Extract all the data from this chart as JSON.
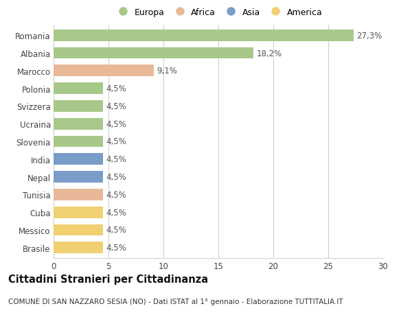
{
  "countries": [
    "Romania",
    "Albania",
    "Marocco",
    "Polonia",
    "Svizzera",
    "Ucraina",
    "Slovenia",
    "India",
    "Nepal",
    "Tunisia",
    "Cuba",
    "Messico",
    "Brasile"
  ],
  "values": [
    27.3,
    18.2,
    9.1,
    4.5,
    4.5,
    4.5,
    4.5,
    4.5,
    4.5,
    4.5,
    4.5,
    4.5,
    4.5
  ],
  "labels": [
    "27,3%",
    "18,2%",
    "9,1%",
    "4,5%",
    "4,5%",
    "4,5%",
    "4,5%",
    "4,5%",
    "4,5%",
    "4,5%",
    "4,5%",
    "4,5%",
    "4,5%"
  ],
  "continents": [
    "Europa",
    "Europa",
    "Africa",
    "Europa",
    "Europa",
    "Europa",
    "Europa",
    "Asia",
    "Asia",
    "Africa",
    "America",
    "America",
    "America"
  ],
  "colors": {
    "Europa": "#a8c88a",
    "Africa": "#e8b898",
    "Asia": "#7a9cc8",
    "America": "#f0d070"
  },
  "xlim": [
    0,
    30
  ],
  "xticks": [
    0,
    5,
    10,
    15,
    20,
    25,
    30
  ],
  "title": "Cittadini Stranieri per Cittadinanza",
  "subtitle": "COMUNE DI SAN NAZZARO SESIA (NO) - Dati ISTAT al 1° gennaio - Elaborazione TUTTITALIA.IT",
  "background_color": "#ffffff",
  "grid_color": "#cccccc",
  "bar_height": 0.65,
  "label_fontsize": 8.5,
  "tick_fontsize": 8.5,
  "title_fontsize": 10.5,
  "subtitle_fontsize": 7.5,
  "legend_order": [
    "Europa",
    "Africa",
    "Asia",
    "America"
  ]
}
